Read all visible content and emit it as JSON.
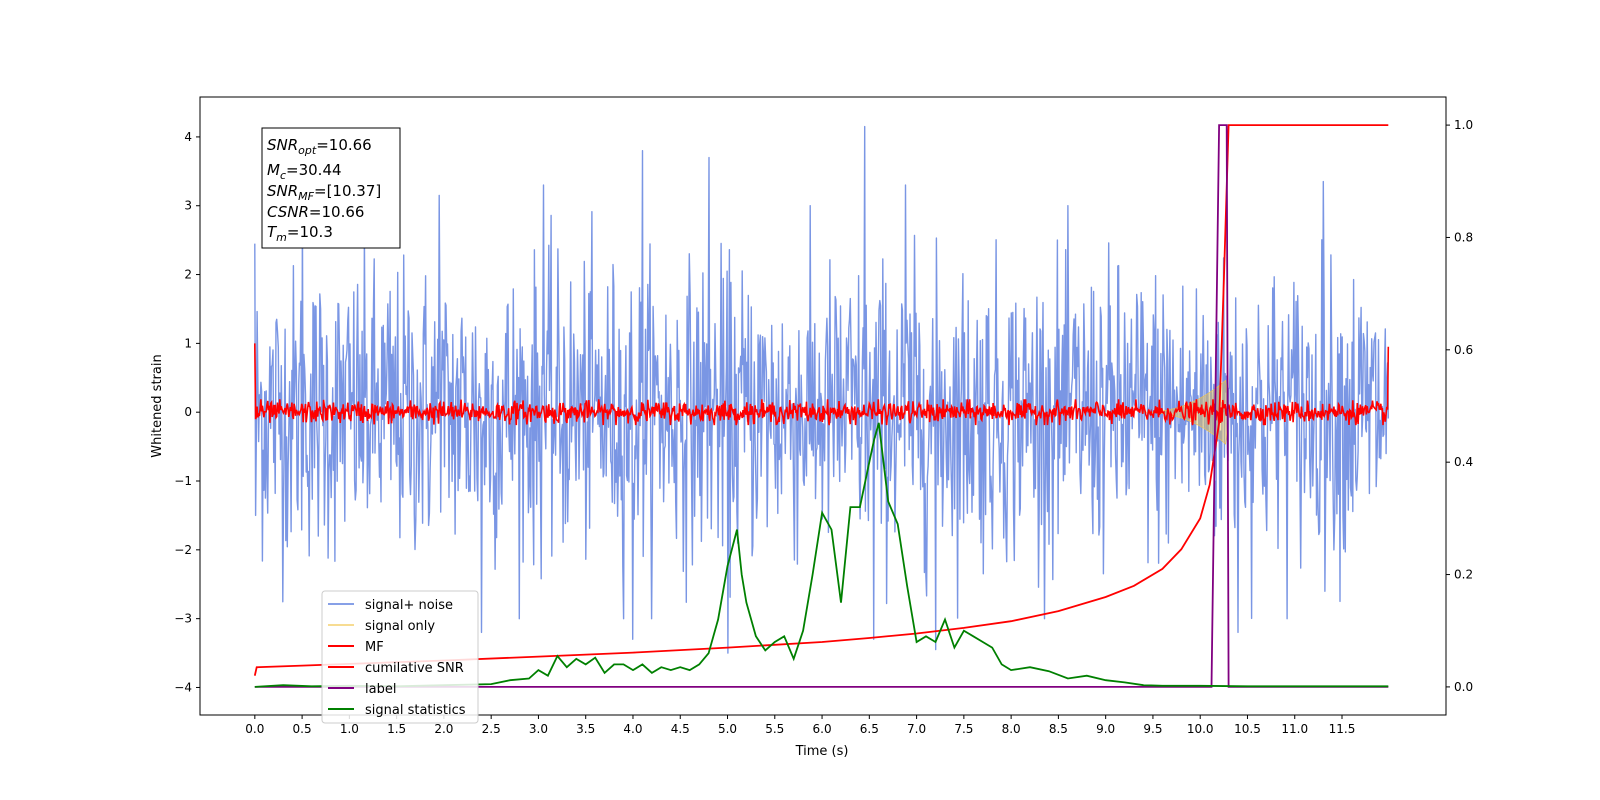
{
  "chart_data": {
    "type": "line",
    "xlabel": "Time (s)",
    "ylabel": "Whitened strain",
    "xlim": [
      -0.58,
      12.6
    ],
    "ylim_left": [
      -4.4,
      4.58
    ],
    "ylim_right": [
      -0.05,
      1.05
    ],
    "x_ticks": [
      0.0,
      0.5,
      1.0,
      1.5,
      2.0,
      2.5,
      3.0,
      3.5,
      4.0,
      4.5,
      5.0,
      5.5,
      6.0,
      6.5,
      7.0,
      7.5,
      8.0,
      8.5,
      9.0,
      9.5,
      10.0,
      10.5,
      11.0,
      11.5
    ],
    "x_tick_labels": [
      "0.0",
      "0.5",
      "1.0",
      "1.5",
      "2.0",
      "2.5",
      "3.0",
      "3.5",
      "4.0",
      "4.5",
      "5.0",
      "5.5",
      "6.0",
      "6.5",
      "7.0",
      "7.5",
      "8.0",
      "8.5",
      "9.0",
      "9.5",
      "10.0",
      "10.5",
      "11.0",
      "11.5"
    ],
    "y_left_ticks": [
      -4,
      -3,
      -2,
      -1,
      0,
      1,
      2,
      3,
      4
    ],
    "y_left_tick_labels": [
      "−4",
      "−3",
      "−2",
      "−1",
      "0",
      "1",
      "2",
      "3",
      "4"
    ],
    "y_right_ticks": [
      0.0,
      0.2,
      0.4,
      0.6,
      0.8,
      1.0
    ],
    "y_right_tick_labels": [
      "0.0",
      "0.2",
      "0.4",
      "0.6",
      "0.8",
      "1.0"
    ],
    "legend_position": "lower-left",
    "grid": false,
    "series": [
      {
        "name": "signal+ noise",
        "axis": "left",
        "color": "#7a96e4",
        "kind": "noise",
        "x_range": [
          0.0,
          11.99
        ],
        "typical_range": [
          -2.4,
          2.4
        ],
        "peaks": [
          [
            0.5,
            2.9
          ],
          [
            1.95,
            3.15
          ],
          [
            3.05,
            3.3
          ],
          [
            4.1,
            3.8
          ],
          [
            4.8,
            3.7
          ],
          [
            6.45,
            4.15
          ],
          [
            6.88,
            3.3
          ],
          [
            11.3,
            3.35
          ],
          [
            2.4,
            -3.2
          ],
          [
            4.0,
            -3.3
          ],
          [
            5.0,
            -3.5
          ],
          [
            6.55,
            -3.3
          ],
          [
            7.2,
            -3.45
          ],
          [
            10.4,
            -3.2
          ]
        ]
      },
      {
        "name": "signal only",
        "axis": "left",
        "color": "#f2c54a",
        "kind": "chirp",
        "x_range": [
          9.4,
          10.3
        ],
        "amplitude_peak": 0.5
      },
      {
        "name": "MF",
        "axis": "left",
        "color": "#ff0000",
        "kind": "noise",
        "x_range": [
          0.0,
          11.99
        ],
        "typical_range": [
          -0.15,
          0.15
        ],
        "edge_values": {
          "start_high": 1.0,
          "start_low": -0.1,
          "end": 0.95
        }
      },
      {
        "name": "cumilative SNR",
        "axis": "right",
        "color": "#ff0000",
        "x": [
          0.0,
          0.02,
          0.5,
          1.0,
          2.0,
          3.0,
          4.0,
          5.0,
          6.0,
          6.5,
          7.0,
          7.5,
          8.0,
          8.5,
          9.0,
          9.3,
          9.6,
          9.8,
          10.0,
          10.1,
          10.2,
          10.25,
          10.3,
          10.5,
          11.0,
          11.5,
          11.99
        ],
        "y": [
          0.02,
          0.035,
          0.038,
          0.041,
          0.047,
          0.054,
          0.061,
          0.07,
          0.08,
          0.087,
          0.095,
          0.105,
          0.117,
          0.135,
          0.16,
          0.18,
          0.21,
          0.245,
          0.3,
          0.36,
          0.47,
          0.72,
          1.0,
          1.0,
          1.0,
          1.0,
          1.0
        ]
      },
      {
        "name": "label",
        "axis": "right",
        "color": "#800080",
        "x": [
          0.0,
          10.12,
          10.2,
          10.28,
          10.3,
          11.99
        ],
        "y": [
          0.0,
          0.0,
          1.0,
          1.0,
          0.0,
          0.0
        ]
      },
      {
        "name": "signal statistics",
        "axis": "right",
        "color": "#008000",
        "x": [
          0.0,
          0.3,
          0.6,
          1.0,
          1.5,
          2.0,
          2.5,
          2.7,
          2.9,
          3.0,
          3.1,
          3.2,
          3.3,
          3.4,
          3.5,
          3.6,
          3.7,
          3.8,
          3.9,
          4.0,
          4.1,
          4.2,
          4.3,
          4.4,
          4.5,
          4.6,
          4.7,
          4.8,
          4.9,
          5.0,
          5.1,
          5.15,
          5.2,
          5.3,
          5.4,
          5.5,
          5.6,
          5.7,
          5.8,
          5.9,
          6.0,
          6.1,
          6.2,
          6.3,
          6.4,
          6.5,
          6.55,
          6.6,
          6.7,
          6.8,
          6.9,
          7.0,
          7.1,
          7.2,
          7.3,
          7.4,
          7.5,
          7.6,
          7.7,
          7.8,
          7.9,
          8.0,
          8.2,
          8.4,
          8.6,
          8.8,
          9.0,
          9.2,
          9.4,
          9.6,
          10.0,
          10.5,
          11.0,
          11.99
        ],
        "y": [
          0.0,
          0.003,
          0.001,
          0.002,
          0.001,
          0.003,
          0.005,
          0.012,
          0.015,
          0.03,
          0.02,
          0.055,
          0.035,
          0.05,
          0.04,
          0.052,
          0.025,
          0.04,
          0.04,
          0.03,
          0.04,
          0.025,
          0.035,
          0.03,
          0.035,
          0.03,
          0.04,
          0.06,
          0.12,
          0.215,
          0.28,
          0.2,
          0.15,
          0.09,
          0.065,
          0.08,
          0.09,
          0.05,
          0.1,
          0.2,
          0.31,
          0.28,
          0.15,
          0.32,
          0.32,
          0.4,
          0.44,
          0.47,
          0.33,
          0.29,
          0.18,
          0.08,
          0.09,
          0.08,
          0.12,
          0.07,
          0.1,
          0.09,
          0.08,
          0.07,
          0.04,
          0.03,
          0.035,
          0.028,
          0.015,
          0.02,
          0.012,
          0.008,
          0.003,
          0.002,
          0.002,
          0.001,
          0.001,
          0.001
        ]
      }
    ]
  },
  "info_box": {
    "snr_opt_value": "=10.66",
    "mc_value": "=30.44",
    "snr_mf_value": "=[10.37]",
    "csnr_value": "=10.66",
    "tm_value": "=10.3"
  }
}
